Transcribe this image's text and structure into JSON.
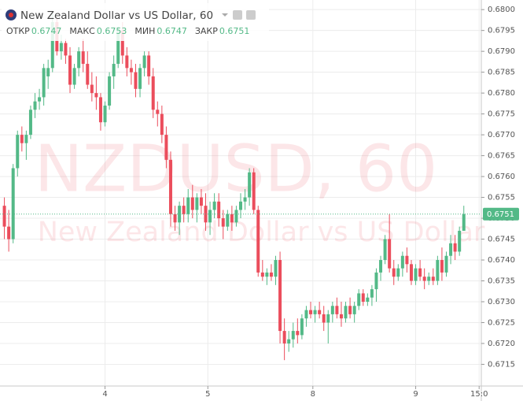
{
  "chart_data": {
    "type": "candlestick",
    "title": "New Zealand Dollar vs US Dollar, 60",
    "ohlc_legend": [
      {
        "label": "ОТКР",
        "value": 0.6747
      },
      {
        "label": "МАКС",
        "value": 0.6753
      },
      {
        "label": "МИН",
        "value": 0.6747
      },
      {
        "label": "ЗАКР",
        "value": 0.6751
      }
    ],
    "watermark": {
      "symbol": "NZDUSD, 60",
      "name": "New Zealand Dollar vs US Dollar"
    },
    "up_color": "#53b987",
    "down_color": "#eb4d5c",
    "last_price": 0.6751,
    "open": [
      0.6753,
      0.6748,
      0.6745,
      0.6762,
      0.677,
      0.6768,
      0.677,
      0.6776,
      0.6778,
      0.6779,
      0.6784,
      0.6786,
      0.6797,
      0.679,
      0.6792,
      0.6789,
      0.6782,
      0.6786,
      0.679,
      0.6787,
      0.6782,
      0.678,
      0.6779,
      0.6773,
      0.6777,
      0.6784,
      0.6787,
      0.6795,
      0.6789,
      0.6786,
      0.6785,
      0.6781,
      0.6786,
      0.6789,
      0.6784,
      0.6776,
      0.6775,
      0.677,
      0.6764,
      0.6751,
      0.6749,
      0.6753,
      0.6751,
      0.6755,
      0.6752,
      0.6755,
      0.6753,
      0.6749,
      0.6752,
      0.6754,
      0.675,
      0.6748,
      0.6751,
      0.6749,
      0.6752,
      0.6754,
      0.6755,
      0.6761,
      0.6752,
      0.6737,
      0.6736,
      0.6737,
      0.6736,
      0.674,
      0.6723,
      0.672,
      0.6721,
      0.6723,
      0.6722,
      0.6726,
      0.6728,
      0.6727,
      0.6728,
      0.6727,
      0.6725,
      0.6727,
      0.6729,
      0.6727,
      0.6726,
      0.6729,
      0.6727,
      0.6729,
      0.6732,
      0.673,
      0.6731,
      0.6733,
      0.6737,
      0.674,
      0.6745,
      0.6738,
      0.6736,
      0.6738,
      0.6741,
      0.6739,
      0.6735,
      0.6738,
      0.6736,
      0.6735,
      0.6736,
      0.6735,
      0.674,
      0.6737,
      0.6741,
      0.6744,
      0.6742,
      0.6747
    ],
    "high": [
      0.6755,
      0.6752,
      0.6763,
      0.6771,
      0.6772,
      0.6771,
      0.6777,
      0.678,
      0.6781,
      0.6787,
      0.6788,
      0.6799,
      0.6798,
      0.6794,
      0.6793,
      0.6791,
      0.6787,
      0.6791,
      0.6793,
      0.679,
      0.6785,
      0.6784,
      0.678,
      0.6778,
      0.6785,
      0.6789,
      0.6796,
      0.6797,
      0.6791,
      0.6788,
      0.6787,
      0.6787,
      0.679,
      0.679,
      0.6786,
      0.6778,
      0.6777,
      0.6772,
      0.6766,
      0.6753,
      0.6754,
      0.6755,
      0.6757,
      0.6758,
      0.6756,
      0.6757,
      0.6756,
      0.6754,
      0.6756,
      0.6756,
      0.6752,
      0.6752,
      0.6753,
      0.6753,
      0.6756,
      0.6757,
      0.6762,
      0.6762,
      0.6753,
      0.674,
      0.6738,
      0.6739,
      0.6741,
      0.6742,
      0.6726,
      0.6723,
      0.6725,
      0.6726,
      0.6727,
      0.6729,
      0.673,
      0.6729,
      0.673,
      0.6729,
      0.6728,
      0.673,
      0.6731,
      0.673,
      0.673,
      0.6731,
      0.673,
      0.6733,
      0.6733,
      0.6732,
      0.6734,
      0.6738,
      0.6741,
      0.6746,
      0.6751,
      0.674,
      0.6739,
      0.6742,
      0.6743,
      0.674,
      0.6739,
      0.674,
      0.6738,
      0.6737,
      0.6738,
      0.6741,
      0.6743,
      0.6742,
      0.6746,
      0.6746,
      0.6748,
      0.6753
    ],
    "low": [
      0.6745,
      0.6742,
      0.6744,
      0.676,
      0.6766,
      0.6764,
      0.6769,
      0.6774,
      0.6776,
      0.6777,
      0.6781,
      0.6785,
      0.6789,
      0.6788,
      0.6787,
      0.678,
      0.6781,
      0.6784,
      0.6785,
      0.6781,
      0.6778,
      0.6776,
      0.6771,
      0.6772,
      0.6776,
      0.6781,
      0.6786,
      0.6787,
      0.6784,
      0.6782,
      0.6779,
      0.6779,
      0.6784,
      0.6782,
      0.6774,
      0.6772,
      0.6768,
      0.6762,
      0.6748,
      0.6747,
      0.6746,
      0.6749,
      0.6749,
      0.675,
      0.6749,
      0.6751,
      0.6747,
      0.6746,
      0.675,
      0.6748,
      0.6745,
      0.6747,
      0.6747,
      0.6748,
      0.675,
      0.6752,
      0.6753,
      0.6751,
      0.6736,
      0.6735,
      0.6734,
      0.6735,
      0.6734,
      0.672,
      0.6716,
      0.6718,
      0.6719,
      0.672,
      0.6721,
      0.6724,
      0.6726,
      0.6725,
      0.6726,
      0.6723,
      0.672,
      0.6725,
      0.6726,
      0.6724,
      0.6725,
      0.6726,
      0.6725,
      0.6728,
      0.6729,
      0.6729,
      0.6729,
      0.673,
      0.6735,
      0.6739,
      0.6737,
      0.6734,
      0.6735,
      0.6736,
      0.6737,
      0.6734,
      0.6734,
      0.6735,
      0.6733,
      0.6734,
      0.6734,
      0.6734,
      0.6735,
      0.6736,
      0.6739,
      0.674,
      0.6741,
      0.6747
    ],
    "close": [
      0.6748,
      0.6745,
      0.6762,
      0.677,
      0.6768,
      0.677,
      0.6776,
      0.6778,
      0.6779,
      0.6786,
      0.6786,
      0.6797,
      0.679,
      0.6792,
      0.6789,
      0.6782,
      0.6786,
      0.679,
      0.6787,
      0.6782,
      0.678,
      0.6779,
      0.6773,
      0.6777,
      0.6784,
      0.6787,
      0.6795,
      0.6789,
      0.6786,
      0.6785,
      0.6781,
      0.6786,
      0.6789,
      0.6784,
      0.6776,
      0.6775,
      0.677,
      0.6764,
      0.6751,
      0.6749,
      0.6753,
      0.6751,
      0.6755,
      0.6752,
      0.6755,
      0.6753,
      0.6749,
      0.6752,
      0.6754,
      0.675,
      0.6748,
      0.6751,
      0.6749,
      0.6752,
      0.6754,
      0.6755,
      0.6761,
      0.6752,
      0.6737,
      0.6736,
      0.6737,
      0.6736,
      0.674,
      0.6723,
      0.672,
      0.6721,
      0.6723,
      0.6722,
      0.6726,
      0.6728,
      0.6727,
      0.6728,
      0.6727,
      0.6725,
      0.6727,
      0.6729,
      0.6727,
      0.6726,
      0.6729,
      0.6727,
      0.6729,
      0.6732,
      0.673,
      0.6731,
      0.6733,
      0.6737,
      0.674,
      0.6745,
      0.6738,
      0.6736,
      0.6738,
      0.6741,
      0.6739,
      0.6735,
      0.6738,
      0.6736,
      0.6735,
      0.6736,
      0.6735,
      0.674,
      0.6737,
      0.6741,
      0.6744,
      0.6742,
      0.6747,
      0.6751
    ],
    "xlim": [
      -1,
      109
    ],
    "xticks": [
      {
        "value": 23,
        "label": "4"
      },
      {
        "value": 46.5,
        "label": "5"
      },
      {
        "value": 70.5,
        "label": "8"
      },
      {
        "value": 94,
        "label": "9"
      },
      {
        "value": 108.5,
        "label": "15:0"
      }
    ],
    "ylim": [
      0.67098,
      0.68023
    ],
    "yticks": [
      0.6715,
      {
        "value": 0.672,
        "label": "0.6720"
      },
      0.6725,
      {
        "value": 0.673,
        "label": "0.6730"
      },
      0.6735,
      {
        "value": 0.674,
        "label": "0.6740"
      },
      0.6745,
      {
        "value": 0.675,
        "label": "0.6750"
      },
      0.6755,
      {
        "value": 0.676,
        "label": "0.6760"
      },
      0.6765,
      {
        "value": 0.677,
        "label": "0.6770"
      },
      0.6775,
      {
        "value": 0.678,
        "label": "0.6780"
      },
      0.6785,
      {
        "value": 0.679,
        "label": "0.6790"
      },
      0.6795,
      {
        "value": 0.68,
        "label": "0.6800"
      }
    ],
    "grid": true
  }
}
